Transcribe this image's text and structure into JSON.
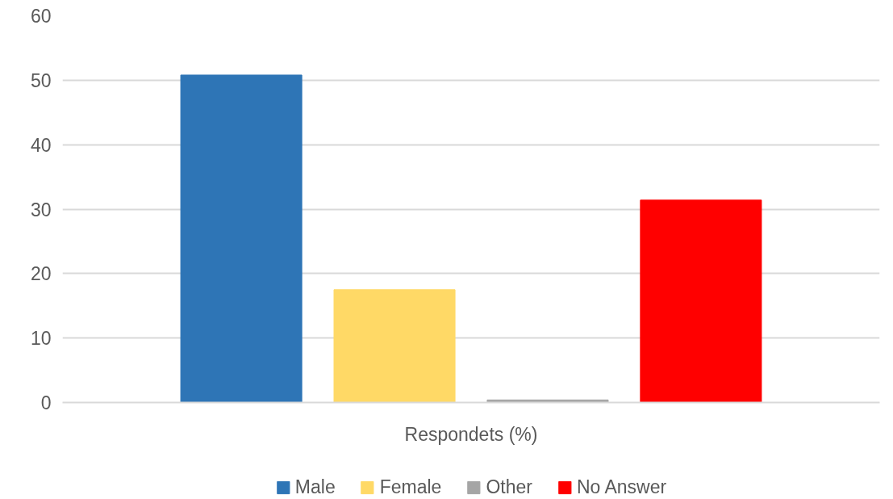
{
  "chart_data": {
    "type": "bar",
    "categories": [
      "Respondets (%)"
    ],
    "series": [
      {
        "name": "Male",
        "color": "#2e75b6",
        "values": [
          50.8
        ]
      },
      {
        "name": "Female",
        "color": "#ffd966",
        "values": [
          17.5
        ]
      },
      {
        "name": "Other",
        "color": "#a5a5a5",
        "values": [
          0.4
        ]
      },
      {
        "name": "No Answer",
        "color": "#ff0000",
        "values": [
          31.4
        ]
      }
    ],
    "ylim": [
      0,
      60
    ],
    "yticks": [
      0,
      10,
      20,
      30,
      40,
      50,
      60
    ],
    "grid": "y",
    "legend": "bottom"
  }
}
